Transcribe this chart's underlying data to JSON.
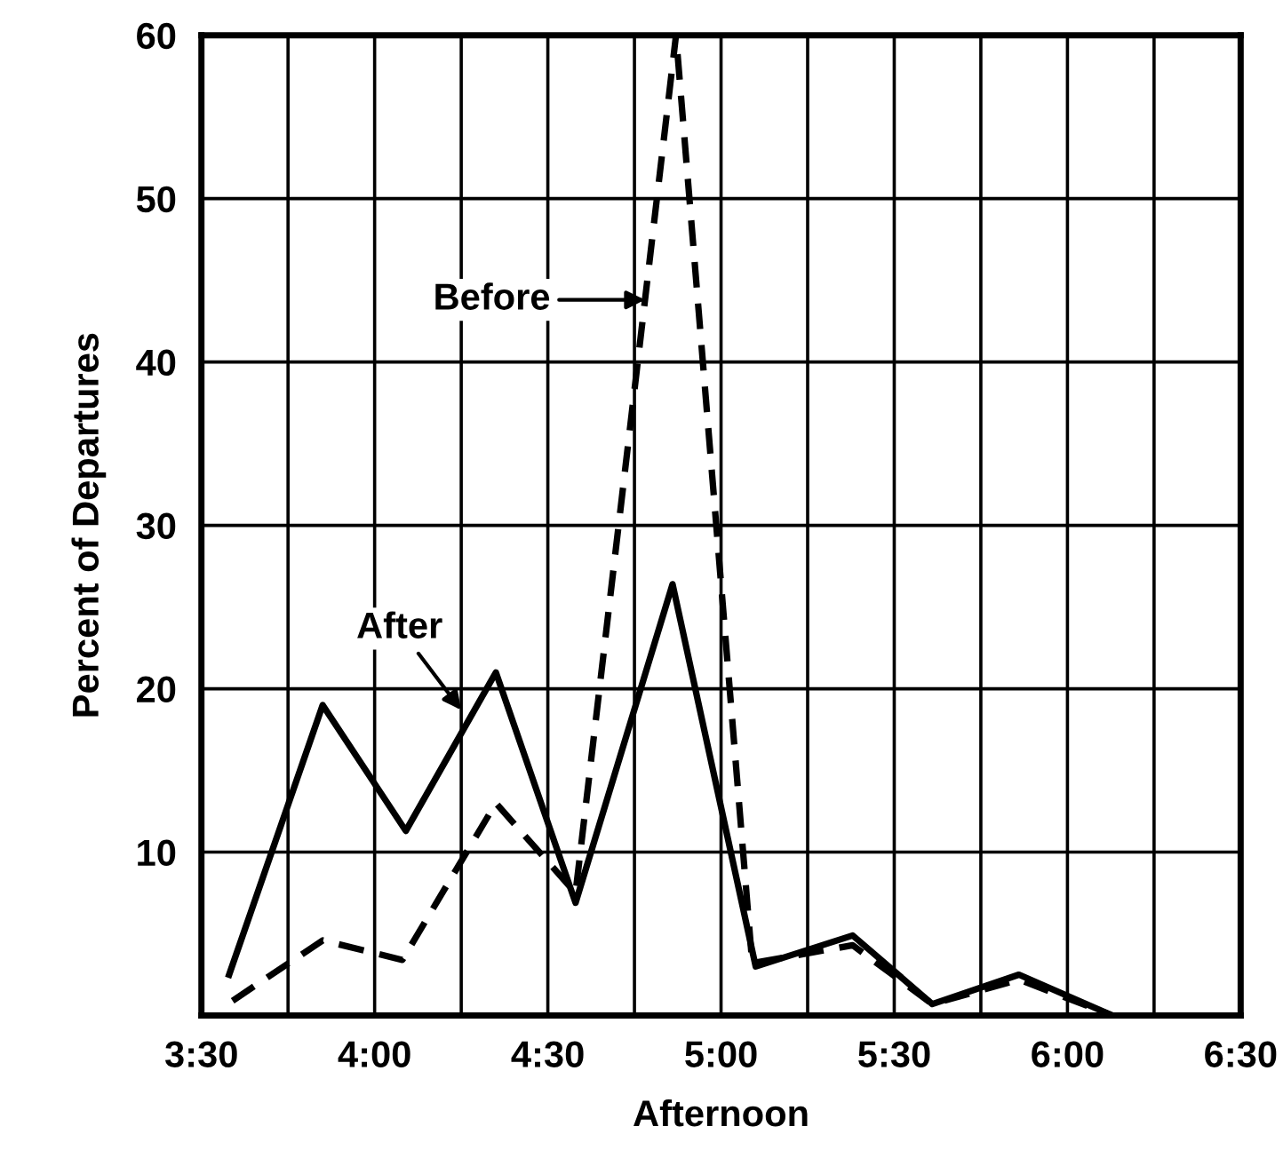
{
  "chart_data": {
    "type": "line",
    "xlabel": "Afternoon",
    "ylabel": "Percent of Departures",
    "xlim": [
      3.5,
      6.5
    ],
    "ylim": [
      0,
      60
    ],
    "xticks": [
      {
        "value": 3.5,
        "label": "3:30"
      },
      {
        "value": 4.0,
        "label": "4:00"
      },
      {
        "value": 4.5,
        "label": "4:30"
      },
      {
        "value": 5.0,
        "label": "5:00"
      },
      {
        "value": 5.5,
        "label": "5:30"
      },
      {
        "value": 6.0,
        "label": "6:00"
      },
      {
        "value": 6.5,
        "label": "6:30"
      }
    ],
    "yticks": [
      {
        "value": 0,
        "label": null
      },
      10,
      20,
      30,
      40,
      50,
      60
    ],
    "grid": true,
    "marker": "none",
    "series": [
      {
        "color": "#000000",
        "line_style": "solid",
        "x": [
          3.58,
          3.85,
          4.09,
          4.35,
          4.58,
          4.86,
          5.1,
          5.38,
          5.61,
          5.86,
          6.13,
          6.37
        ],
        "values": [
          2.5,
          19,
          11.3,
          21,
          6.9,
          26.4,
          3,
          4.9,
          0.7,
          2.5,
          0,
          0
        ]
      },
      {
        "color": "#000000",
        "line_style": "dashed",
        "x": [
          3.59,
          3.85,
          4.08,
          4.35,
          4.58,
          4.87,
          5.09,
          5.38,
          5.61,
          5.86,
          6.13,
          6.37
        ],
        "values": [
          0.9,
          4.6,
          3.4,
          13,
          7.5,
          60,
          3.2,
          4.3,
          0.7,
          2.2,
          0,
          0
        ]
      }
    ],
    "annotations": [
      {
        "text": "Before",
        "x": 4.78,
        "y": 43.8
      },
      {
        "text": "After",
        "x": 4.25,
        "y": 18.7
      }
    ]
  }
}
